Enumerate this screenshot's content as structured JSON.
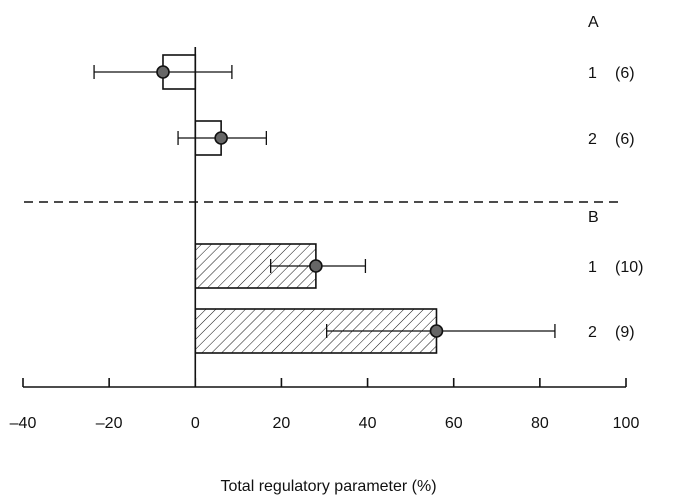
{
  "chart_data": {
    "type": "bar",
    "orientation": "horizontal",
    "xlabel": "Total regulatory parameter (%)",
    "xlim": [
      -40,
      100
    ],
    "xticks": [
      -40,
      -20,
      0,
      20,
      40,
      60,
      80,
      100
    ],
    "xtick_labels": [
      "–40",
      "–20",
      "0",
      "20",
      "40",
      "60",
      "80",
      "100"
    ],
    "groups": [
      {
        "label": "A",
        "hatched": false,
        "bars": [
          {
            "label": "1",
            "n": "(6)",
            "value": -7.5,
            "err_low": -23.5,
            "err_high": 8.5
          },
          {
            "label": "2",
            "n": "(6)",
            "value": 6,
            "err_low": -4,
            "err_high": 16.5
          }
        ]
      },
      {
        "label": "B",
        "hatched": true,
        "bars": [
          {
            "label": "1",
            "n": "(10)",
            "value": 28,
            "err_low": 17.5,
            "err_high": 39.5
          },
          {
            "label": "2",
            "n": "(9)",
            "value": 56,
            "err_low": 30.5,
            "err_high": 83.5
          }
        ]
      }
    ],
    "group_separator": "dashed",
    "grid": false
  }
}
